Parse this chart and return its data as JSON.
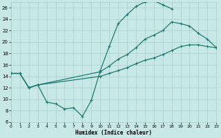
{
  "xlabel": "Humidex (Indice chaleur)",
  "bg_color": "#c8e8e8",
  "line_color": "#1a7a6e",
  "grid_color": "#a8cccc",
  "xlim": [
    0,
    23
  ],
  "ylim": [
    6,
    27
  ],
  "xticks": [
    0,
    1,
    2,
    3,
    4,
    5,
    6,
    7,
    8,
    9,
    10,
    11,
    12,
    13,
    14,
    15,
    16,
    17,
    18,
    19,
    20,
    21,
    22,
    23
  ],
  "yticks": [
    6,
    8,
    10,
    12,
    14,
    16,
    18,
    20,
    22,
    24,
    26
  ],
  "curve1_x": [
    0,
    1,
    2,
    3,
    4,
    5,
    6,
    7,
    8,
    9,
    10,
    11,
    12,
    13,
    14,
    15,
    16,
    17,
    18
  ],
  "curve1_y": [
    14.5,
    14.5,
    12.0,
    12.5,
    9.5,
    9.2,
    8.3,
    8.5,
    7.0,
    9.8,
    15.0,
    19.2,
    23.2,
    24.8,
    26.2,
    27.0,
    27.2,
    26.5,
    25.8
  ],
  "curve2_x": [
    0,
    1,
    2,
    3,
    10,
    11,
    12,
    13,
    14,
    15,
    16,
    17,
    18,
    19,
    20,
    21,
    22,
    23
  ],
  "curve2_y": [
    14.5,
    14.5,
    12.0,
    12.5,
    14.8,
    15.8,
    17.0,
    17.8,
    19.0,
    20.5,
    21.2,
    22.0,
    23.5,
    23.2,
    22.8,
    21.5,
    20.5,
    19.0
  ],
  "curve3_x": [
    0,
    1,
    2,
    3,
    10,
    11,
    12,
    13,
    14,
    15,
    16,
    17,
    18,
    19,
    20,
    21,
    22,
    23
  ],
  "curve3_y": [
    14.5,
    14.5,
    12.0,
    12.5,
    14.0,
    14.5,
    15.0,
    15.5,
    16.2,
    16.8,
    17.2,
    17.8,
    18.5,
    19.2,
    19.5,
    19.5,
    19.2,
    19.0
  ]
}
